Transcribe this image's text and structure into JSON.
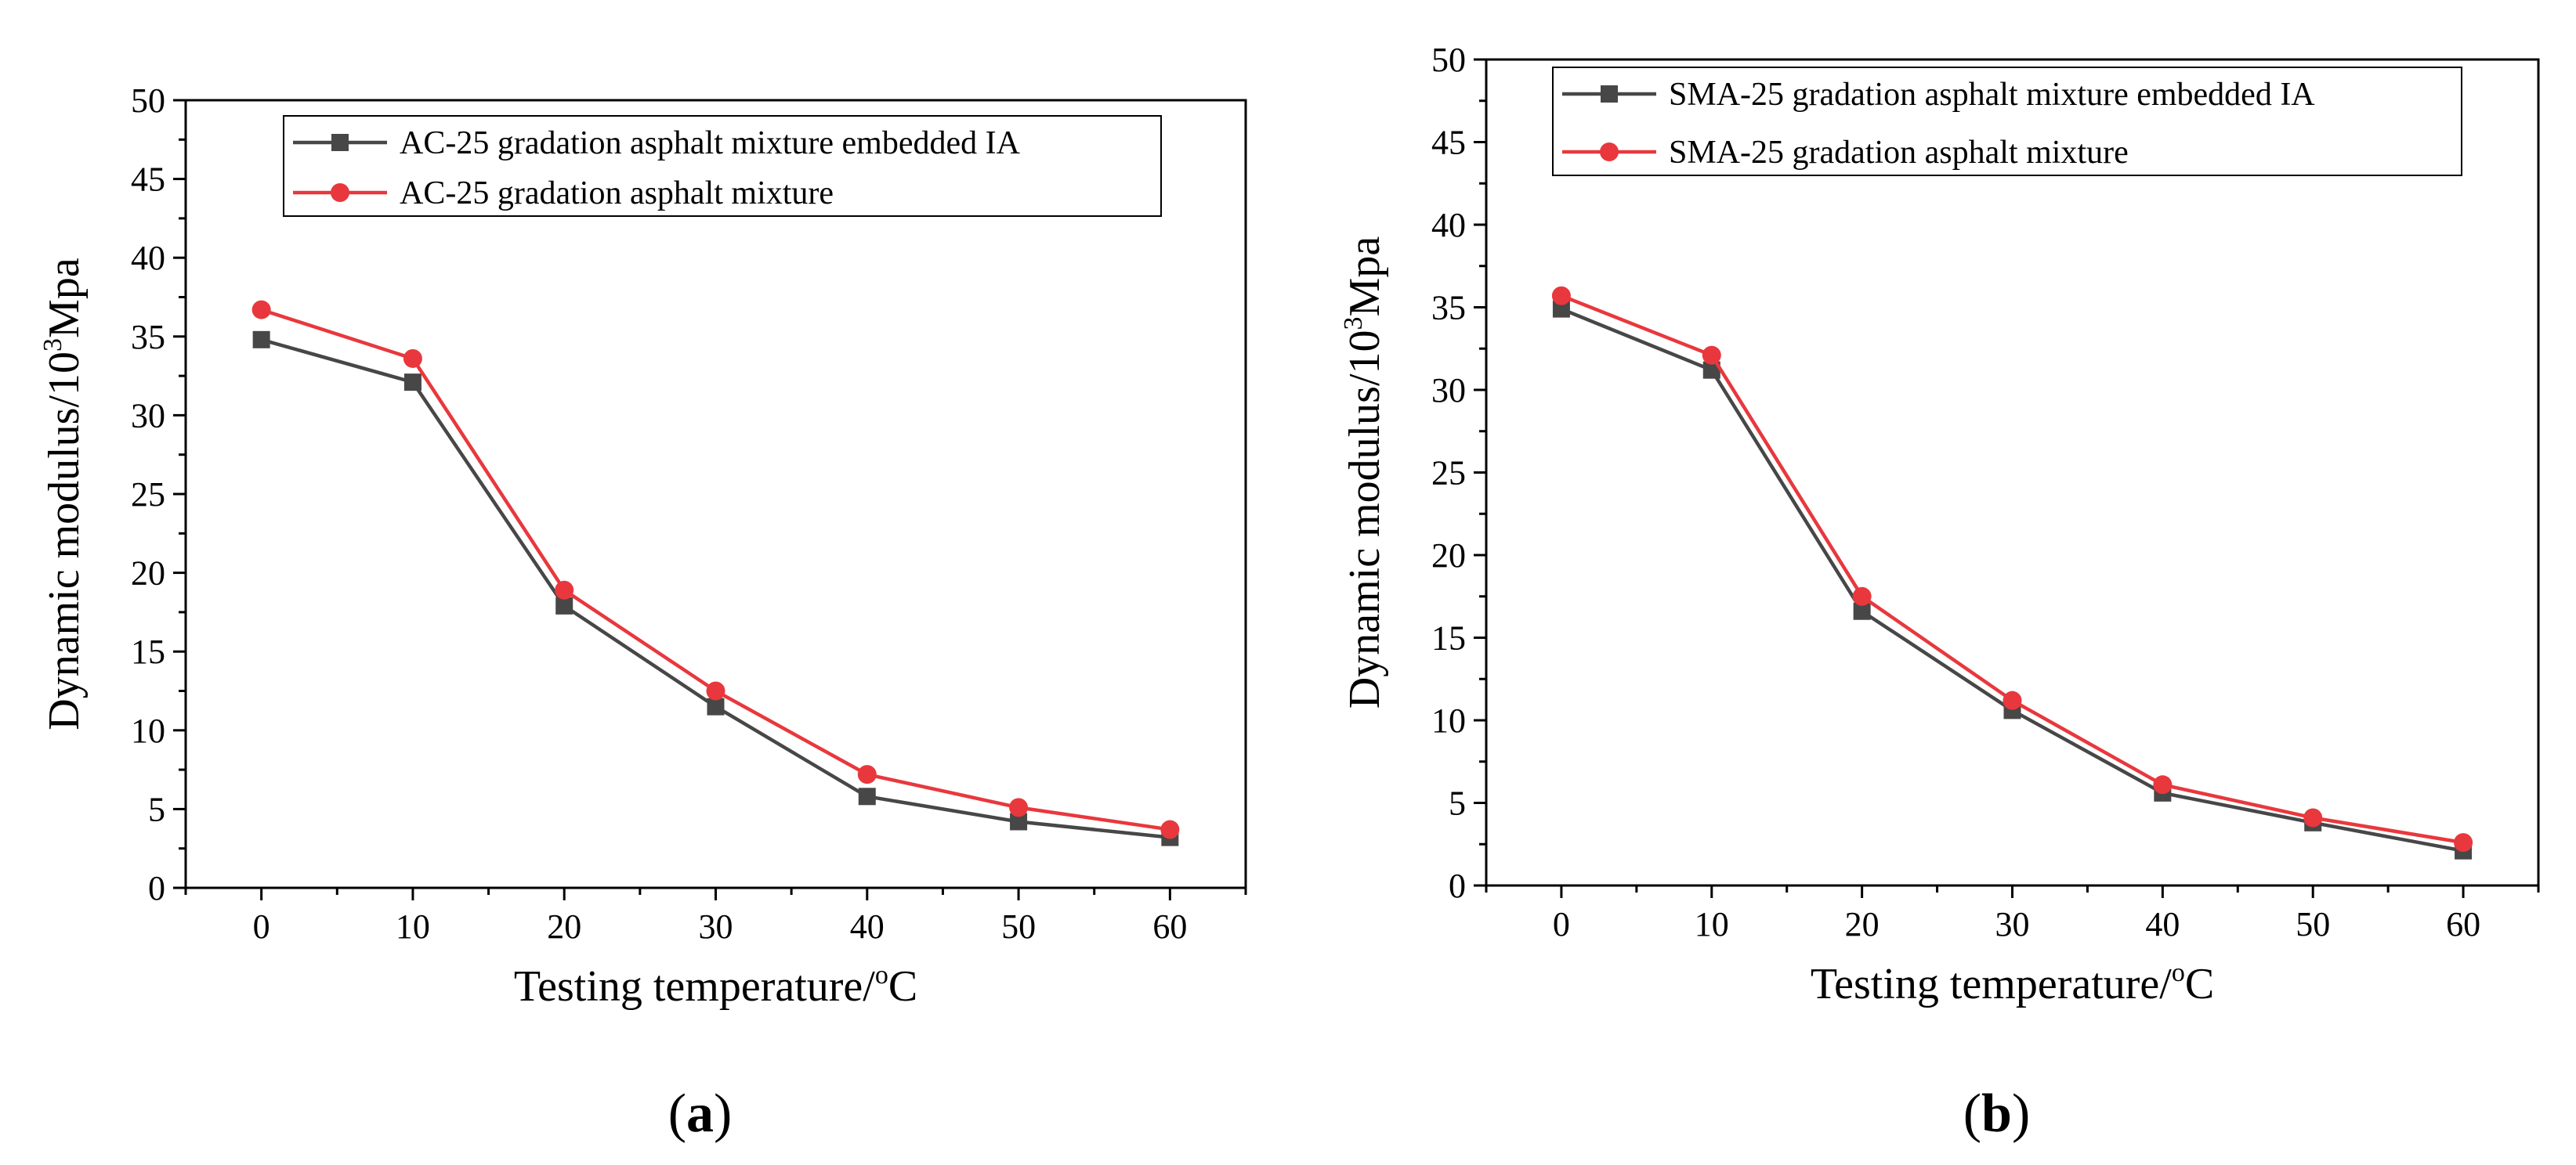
{
  "chart_data": [
    {
      "panel_label": "a",
      "type": "line",
      "xlabel": "Testing temperature/",
      "xlabel_unit_sup": "o",
      "xlabel_unit": "C",
      "ylabel": "Dynamic modulus/10",
      "ylabel_sup": "3",
      "ylabel_unit": "Mpa",
      "x": [
        0,
        10,
        20,
        30,
        40,
        50,
        60
      ],
      "xlim": [
        -5,
        65
      ],
      "ylim": [
        0,
        50
      ],
      "xticks": [
        0,
        10,
        20,
        30,
        40,
        50,
        60
      ],
      "yticks": [
        0,
        5,
        10,
        15,
        20,
        25,
        30,
        35,
        40,
        45,
        50
      ],
      "legend_position": "top-right",
      "series": [
        {
          "name": "AC-25 gradation asphalt mixture embedded IA",
          "marker": "square",
          "color": "#474747",
          "values": [
            34.8,
            32.1,
            17.9,
            11.5,
            5.8,
            4.2,
            3.2
          ]
        },
        {
          "name": "AC-25 gradation asphalt mixture",
          "marker": "circle",
          "color": "#e8383d",
          "values": [
            36.7,
            33.6,
            18.9,
            12.5,
            7.2,
            5.1,
            3.7
          ]
        }
      ]
    },
    {
      "panel_label": "b",
      "type": "line",
      "xlabel": "Testing temperature/",
      "xlabel_unit_sup": "o",
      "xlabel_unit": "C",
      "ylabel": "Dynamic modulus/10",
      "ylabel_sup": "3",
      "ylabel_unit": "Mpa",
      "x": [
        0,
        10,
        20,
        30,
        40,
        50,
        60
      ],
      "xlim": [
        -5,
        65
      ],
      "ylim": [
        0,
        50
      ],
      "xticks": [
        0,
        10,
        20,
        30,
        40,
        50,
        60
      ],
      "yticks": [
        0,
        5,
        10,
        15,
        20,
        25,
        30,
        35,
        40,
        45,
        50
      ],
      "legend_position": "top-right",
      "series": [
        {
          "name": "SMA-25 gradation asphalt mixture embedded IA",
          "marker": "square",
          "color": "#474747",
          "values": [
            34.9,
            31.2,
            16.6,
            10.6,
            5.6,
            3.8,
            2.1
          ]
        },
        {
          "name": "SMA-25 gradation asphalt mixture",
          "marker": "circle",
          "color": "#e8383d",
          "values": [
            35.7,
            32.1,
            17.5,
            11.2,
            6.1,
            4.1,
            2.6
          ]
        }
      ]
    }
  ]
}
